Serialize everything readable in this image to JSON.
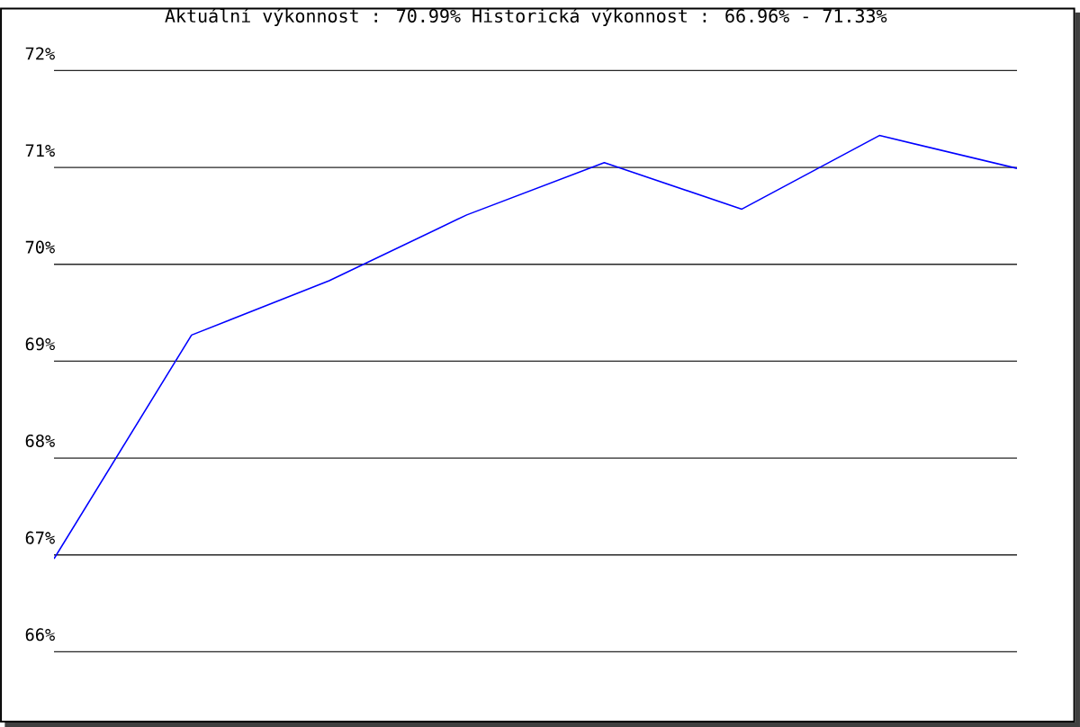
{
  "chart_data": {
    "type": "line",
    "title": "Aktuální výkonnost : 70.99%  Historická výkonnost : 66.96% - 71.33%",
    "categories": [
      null,
      null,
      null,
      null,
      null,
      null,
      null,
      null
    ],
    "series": [
      {
        "color": "#0000ff",
        "values": [
          66.96,
          69.27,
          69.83,
          70.51,
          71.05,
          70.57,
          71.33,
          70.99
        ]
      }
    ],
    "ylim": [
      66,
      72
    ],
    "yticks": [
      {
        "value": 66,
        "label": "66%"
      },
      {
        "value": 67,
        "label": "67%"
      },
      {
        "value": 68,
        "label": "68%"
      },
      {
        "value": 69,
        "label": "69%"
      },
      {
        "value": 70,
        "label": "70%"
      },
      {
        "value": 71,
        "label": "71%"
      },
      {
        "value": 72,
        "label": "72%"
      }
    ],
    "grid": "y",
    "marker": "none",
    "line_style": "solid"
  }
}
